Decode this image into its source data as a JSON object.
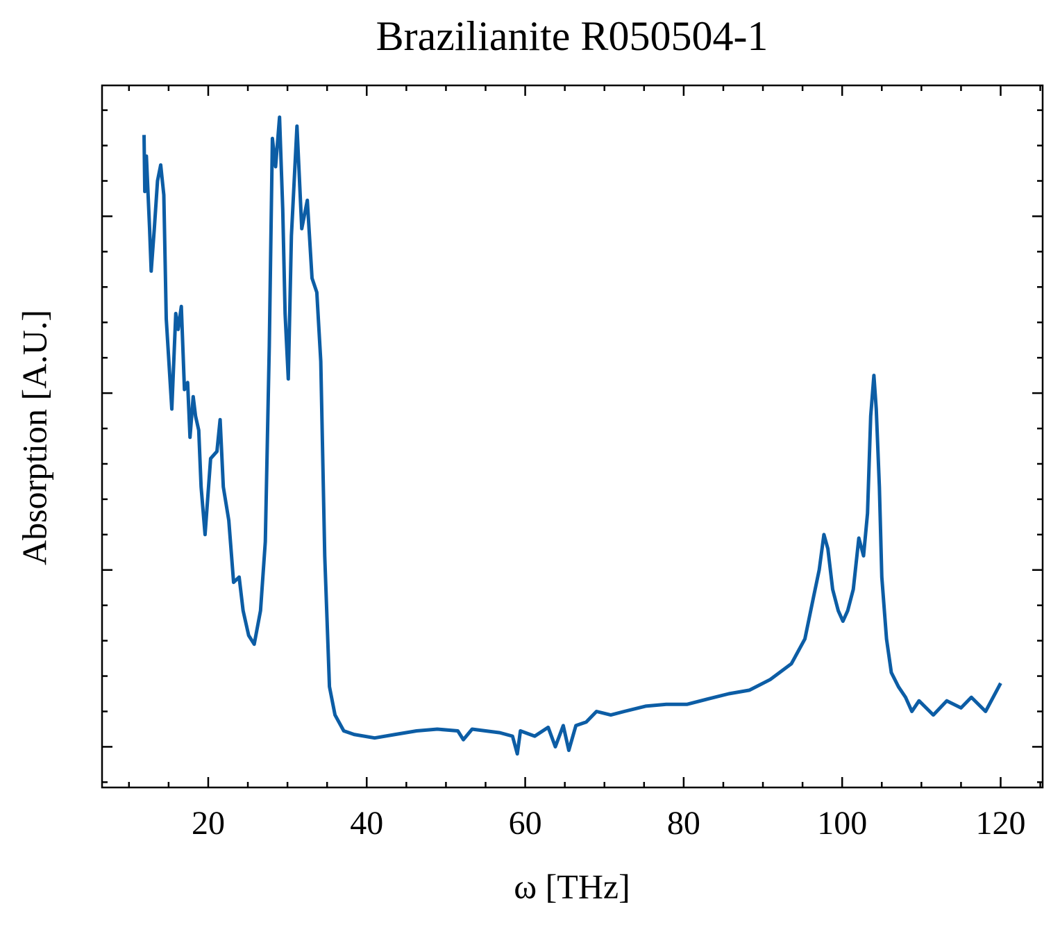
{
  "chart_data": {
    "type": "line",
    "title": "Brazilianite R050504-1",
    "xlabel": "ω [THz]",
    "ylabel": "Absorption [A.U.]",
    "color": "#0c5da5",
    "x": [
      11.9,
      12.0,
      12.2,
      12.6,
      12.8,
      13.2,
      13.6,
      14.0,
      14.4,
      14.7,
      15.4,
      15.9,
      16.2,
      16.6,
      17.0,
      17.4,
      17.7,
      18.1,
      18.4,
      18.8,
      19.1,
      19.6,
      20.3,
      21.1,
      21.5,
      21.9,
      22.6,
      23.2,
      23.9,
      24.4,
      25.1,
      25.8,
      26.6,
      27.2,
      27.7,
      28.1,
      28.5,
      29.0,
      29.4,
      29.7,
      30.1,
      30.5,
      31.2,
      31.8,
      32.5,
      33.1,
      33.7,
      34.2,
      34.7,
      35.3,
      36.0,
      37.1,
      38.4,
      41.0,
      43.6,
      46.3,
      48.9,
      51.5,
      52.2,
      53.3,
      55.0,
      56.8,
      58.4,
      59.0,
      59.4,
      61.2,
      62.9,
      63.8,
      64.8,
      65.5,
      66.4,
      67.7,
      69.0,
      70.8,
      72.5,
      75.2,
      77.8,
      80.4,
      83.0,
      85.7,
      88.3,
      90.9,
      93.6,
      95.3,
      96.4,
      97.1,
      97.7,
      98.2,
      98.8,
      99.5,
      100.1,
      100.7,
      101.4,
      102.1,
      102.7,
      103.2,
      103.6,
      104.0,
      104.3,
      104.7,
      105.0,
      105.6,
      106.2,
      107.1,
      108.0,
      108.8,
      109.7,
      111.5,
      113.2,
      115.0,
      116.3,
      118.1,
      120.0
    ],
    "values": [
      3.46,
      3.14,
      3.34,
      2.93,
      2.69,
      2.93,
      3.2,
      3.29,
      3.12,
      2.42,
      1.91,
      2.45,
      2.36,
      2.49,
      2.02,
      2.06,
      1.75,
      1.98,
      1.87,
      1.79,
      1.47,
      1.2,
      1.63,
      1.67,
      1.85,
      1.47,
      1.28,
      0.93,
      0.96,
      0.77,
      0.63,
      0.58,
      0.77,
      1.16,
      2.26,
      3.44,
      3.28,
      3.56,
      3.04,
      2.45,
      2.08,
      2.89,
      3.51,
      2.93,
      3.09,
      2.65,
      2.57,
      2.18,
      1.08,
      0.34,
      0.18,
      0.09,
      0.07,
      0.05,
      0.07,
      0.09,
      0.1,
      0.09,
      0.04,
      0.1,
      0.09,
      0.08,
      0.06,
      -0.04,
      0.09,
      0.06,
      0.11,
      0.0,
      0.12,
      -0.02,
      0.12,
      0.14,
      0.2,
      0.18,
      0.2,
      0.23,
      0.24,
      0.24,
      0.27,
      0.3,
      0.32,
      0.38,
      0.47,
      0.61,
      0.85,
      1.0,
      1.2,
      1.12,
      0.89,
      0.77,
      0.71,
      0.77,
      0.89,
      1.18,
      1.08,
      1.32,
      1.87,
      2.1,
      1.91,
      1.47,
      0.96,
      0.61,
      0.42,
      0.34,
      0.28,
      0.2,
      0.26,
      0.18,
      0.26,
      0.22,
      0.28,
      0.2,
      0.36
    ],
    "xlim": [
      6.6,
      125.3
    ],
    "xticks": [
      20,
      40,
      60,
      80,
      100,
      120
    ],
    "xminorticks": [
      10,
      15,
      25,
      30,
      35,
      45,
      50,
      55,
      65,
      70,
      75,
      85,
      90,
      95,
      105,
      110,
      115,
      125
    ],
    "ylim": [
      -0.23,
      3.74
    ],
    "yticks": [
      0,
      1,
      2,
      3
    ],
    "yminorticks": [
      -0.2,
      0.2,
      0.4,
      0.6,
      0.8,
      1.2,
      1.4,
      1.6,
      1.8,
      2.2,
      2.4,
      2.6,
      2.8,
      3.2,
      3.4,
      3.6
    ],
    "ytick_labels": false
  }
}
